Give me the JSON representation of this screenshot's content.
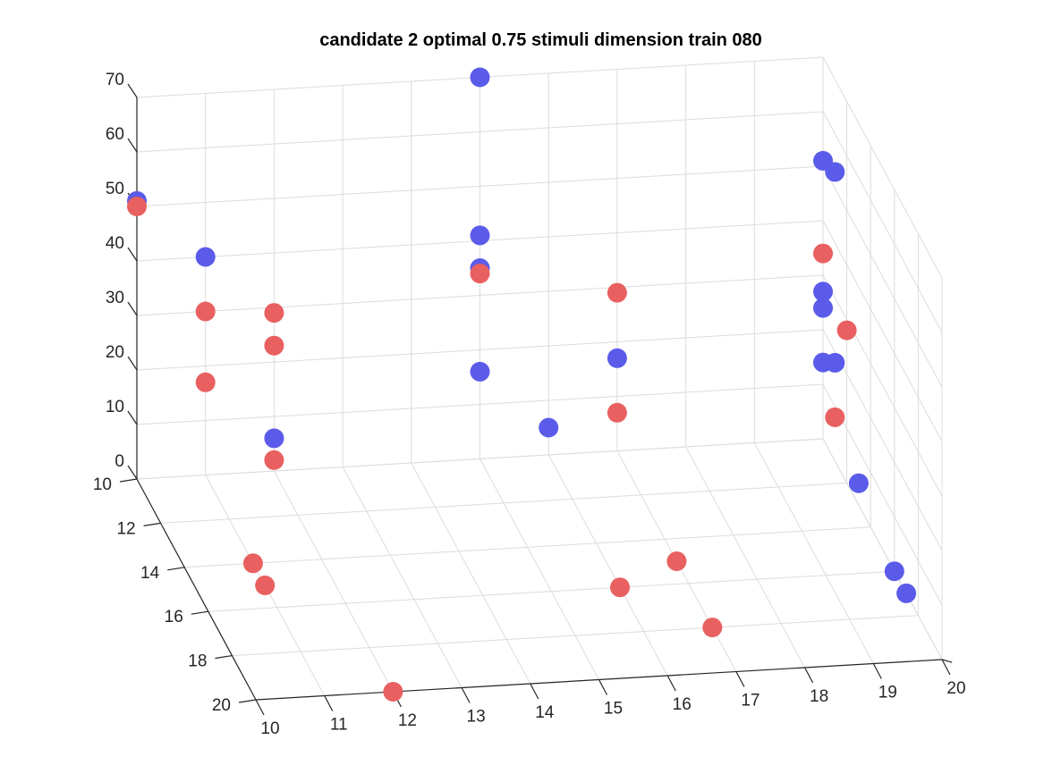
{
  "chart_data": {
    "type": "scatter3d",
    "title": "candidate 2 optimal 0.75 stimuli dimension train 080",
    "xlabel": "",
    "ylabel": "",
    "zlabel": "",
    "x_ticks": [
      "10",
      "11",
      "12",
      "13",
      "14",
      "15",
      "16",
      "17",
      "18",
      "19",
      "20"
    ],
    "y_ticks": [
      "10",
      "12",
      "14",
      "16",
      "18",
      "20"
    ],
    "z_ticks": [
      "0",
      "10",
      "20",
      "30",
      "40",
      "50",
      "60",
      "70"
    ],
    "xlim": [
      10,
      20
    ],
    "ylim": [
      10,
      20
    ],
    "zlim": [
      0,
      70
    ],
    "grid": true,
    "series": [
      {
        "color": "#5b5be9",
        "points": [
          {
            "x": 10,
            "y": 10,
            "z": 51
          },
          {
            "x": 11,
            "y": 10,
            "z": 40
          },
          {
            "x": 12,
            "y": 10,
            "z": 6
          },
          {
            "x": 15,
            "y": 10,
            "z": 70
          },
          {
            "x": 15,
            "y": 10,
            "z": 41
          },
          {
            "x": 15,
            "y": 10,
            "z": 35
          },
          {
            "x": 15,
            "y": 10,
            "z": 16
          },
          {
            "x": 16,
            "y": 10,
            "z": 5
          },
          {
            "x": 17,
            "y": 10,
            "z": 17
          },
          {
            "x": 20,
            "y": 10,
            "z": 51
          },
          {
            "x": 20,
            "y": 10,
            "z": 27
          },
          {
            "x": 20,
            "y": 10,
            "z": 24
          },
          {
            "x": 20,
            "y": 10,
            "z": 14
          },
          {
            "x": 20,
            "y": 11,
            "z": 53
          },
          {
            "x": 20,
            "y": 11,
            "z": 18
          },
          {
            "x": 20,
            "y": 13,
            "z": 4
          },
          {
            "x": 20,
            "y": 16,
            "z": 0
          },
          {
            "x": 20,
            "y": 17,
            "z": 0
          }
        ]
      },
      {
        "color": "#e96060",
        "points": [
          {
            "x": 10,
            "y": 10,
            "z": 50
          },
          {
            "x": 11,
            "y": 10,
            "z": 30
          },
          {
            "x": 11,
            "y": 10,
            "z": 17
          },
          {
            "x": 12,
            "y": 10,
            "z": 29
          },
          {
            "x": 12,
            "y": 10,
            "z": 23
          },
          {
            "x": 12,
            "y": 10,
            "z": 2
          },
          {
            "x": 15,
            "y": 10,
            "z": 34
          },
          {
            "x": 17,
            "y": 10,
            "z": 29
          },
          {
            "x": 17,
            "y": 10,
            "z": 7
          },
          {
            "x": 20,
            "y": 10,
            "z": 34
          },
          {
            "x": 20,
            "y": 11,
            "z": 8
          },
          {
            "x": 20,
            "y": 12,
            "z": 28
          },
          {
            "x": 11,
            "y": 14,
            "z": 0
          },
          {
            "x": 11,
            "y": 15,
            "z": 0
          },
          {
            "x": 17,
            "y": 15,
            "z": 0
          },
          {
            "x": 16,
            "y": 16,
            "z": 0
          },
          {
            "x": 17,
            "y": 18,
            "z": 0
          },
          {
            "x": 12,
            "y": 20,
            "z": 0
          }
        ]
      }
    ]
  }
}
